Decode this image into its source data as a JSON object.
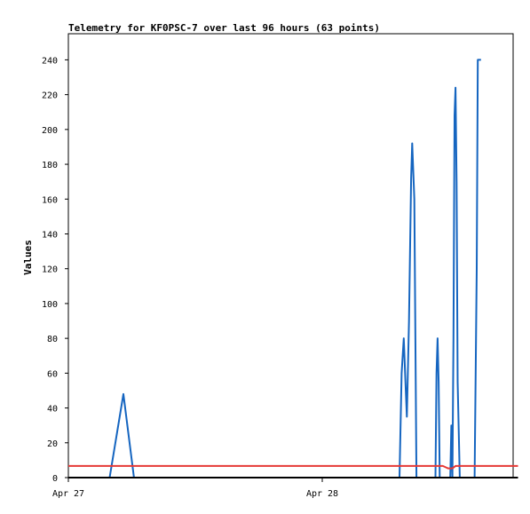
{
  "chart_data": {
    "type": "line",
    "title": "Telemetry for KF0PSC-7 over last 96 hours (63 points)",
    "xlabel": "",
    "ylabel": "Values",
    "x_ticks": [
      "Apr 27",
      "Apr 28"
    ],
    "ylim": [
      0,
      255
    ],
    "y_ticks": [
      0,
      20,
      40,
      60,
      80,
      100,
      120,
      140,
      160,
      180,
      200,
      220,
      240
    ],
    "x_unit": "hours after Apr 27 00:00",
    "xlim": [
      0,
      42.5
    ],
    "grid": false,
    "legend": "none",
    "series": [
      {
        "color": "#1565c0",
        "x": [
          3.5,
          3.9,
          5.2,
          6.2,
          31.3,
          31.5,
          31.7,
          31.9,
          32.0,
          32.2,
          32.4,
          32.5,
          32.7,
          32.9,
          33.1,
          33.3,
          33.4,
          34.7,
          34.8,
          34.9,
          35.0,
          35.1,
          35.3,
          36.1,
          36.2,
          36.3,
          36.4,
          36.5,
          36.6,
          36.7,
          36.8,
          37.0,
          38.4,
          38.6,
          38.7,
          38.8,
          38.9,
          39.0
        ],
        "y": [
          0,
          0,
          48,
          0,
          0,
          60,
          80,
          50,
          35,
          90,
          172,
          192,
          160,
          0,
          0,
          0,
          0,
          0,
          60,
          80,
          55,
          0,
          0,
          0,
          30,
          0,
          80,
          208,
          224,
          170,
          55,
          0,
          0,
          120,
          240,
          240,
          240,
          240
        ]
      },
      {
        "color": "#e53935",
        "x": [
          0,
          34.2,
          35.4,
          35.9,
          36.3,
          36.6,
          42.5
        ],
        "y": [
          6.7,
          6.7,
          6.7,
          5.3,
          5.3,
          6.7,
          6.7
        ]
      },
      {
        "color": "#000000",
        "x": [
          0,
          42.5
        ],
        "y": [
          0,
          0
        ]
      }
    ]
  }
}
